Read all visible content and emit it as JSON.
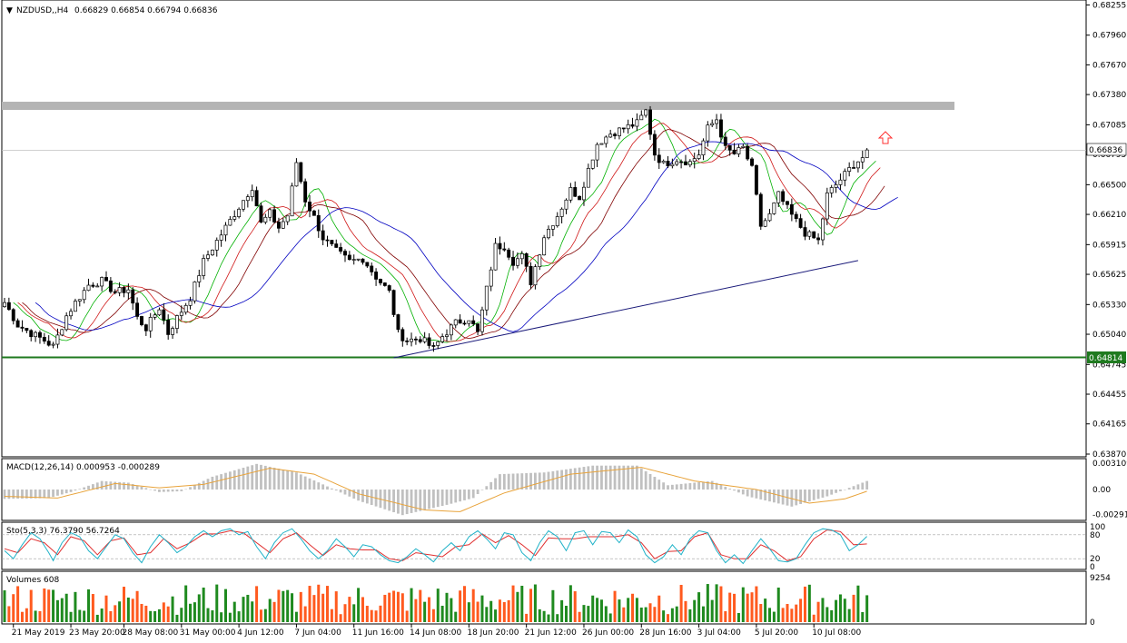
{
  "chart_data": {
    "type": "candlestick",
    "main": {
      "symbol": "NZDUSD,,H4",
      "ohlc_text": "0.66829 0.66854 0.66794 0.66836",
      "ylim": [
        0.6387,
        0.6825
      ],
      "price_ticks": [
        "0.68255",
        "0.67960",
        "0.67670",
        "0.67380",
        "0.67085",
        "0.66795",
        "0.66500",
        "0.66210",
        "0.65915",
        "0.65625",
        "0.65330",
        "0.65040",
        "0.64745",
        "0.64455",
        "0.64165",
        "0.63870"
      ],
      "current_price": "0.66836",
      "support_level": "0.64814",
      "resistance_zone": [
        0.6723,
        0.6731
      ],
      "trendline": [
        [
          0.6481,
          88
        ],
        [
          0.6576,
          193
        ]
      ],
      "close_path": [
        [
          0,
          0.6535
        ],
        [
          3,
          0.6513
        ],
        [
          6,
          0.6505
        ],
        [
          9,
          0.6498
        ],
        [
          11,
          0.6492
        ],
        [
          14,
          0.6522
        ],
        [
          16,
          0.6535
        ],
        [
          19,
          0.6552
        ],
        [
          22,
          0.6556
        ],
        [
          25,
          0.6545
        ],
        [
          28,
          0.6548
        ],
        [
          30,
          0.652
        ],
        [
          32,
          0.651
        ],
        [
          35,
          0.653
        ],
        [
          37,
          0.6505
        ],
        [
          39,
          0.652
        ],
        [
          42,
          0.654
        ],
        [
          45,
          0.6575
        ],
        [
          48,
          0.6595
        ],
        [
          51,
          0.6615
        ],
        [
          54,
          0.6635
        ],
        [
          56,
          0.6648
        ],
        [
          58,
          0.6612
        ],
        [
          60,
          0.6622
        ],
        [
          62,
          0.6608
        ],
        [
          64,
          0.662
        ],
        [
          66,
          0.6672
        ],
        [
          68,
          0.6635
        ],
        [
          70,
          0.6618
        ],
        [
          72,
          0.6598
        ],
        [
          75,
          0.6585
        ],
        [
          78,
          0.6575
        ],
        [
          81,
          0.6578
        ],
        [
          84,
          0.656
        ],
        [
          87,
          0.6545
        ],
        [
          89,
          0.6505
        ],
        [
          91,
          0.6498
        ],
        [
          94,
          0.65
        ],
        [
          97,
          0.649
        ],
        [
          99,
          0.6502
        ],
        [
          102,
          0.6515
        ],
        [
          105,
          0.652
        ],
        [
          107,
          0.6505
        ],
        [
          109,
          0.6548
        ],
        [
          111,
          0.659
        ],
        [
          113,
          0.659
        ],
        [
          115,
          0.6575
        ],
        [
          117,
          0.658
        ],
        [
          119,
          0.6555
        ],
        [
          122,
          0.66
        ],
        [
          125,
          0.662
        ],
        [
          128,
          0.6645
        ],
        [
          130,
          0.6638
        ],
        [
          132,
          0.6665
        ],
        [
          134,
          0.669
        ],
        [
          137,
          0.67
        ],
        [
          140,
          0.6705
        ],
        [
          143,
          0.671
        ],
        [
          145,
          0.6722
        ],
        [
          147,
          0.668
        ],
        [
          149,
          0.667
        ],
        [
          152,
          0.6675
        ],
        [
          155,
          0.6672
        ],
        [
          157,
          0.668
        ],
        [
          159,
          0.6705
        ],
        [
          161,
          0.6714
        ],
        [
          163,
          0.6685
        ],
        [
          165,
          0.668
        ],
        [
          167,
          0.6686
        ],
        [
          169,
          0.6665
        ],
        [
          171,
          0.661
        ],
        [
          173,
          0.662
        ],
        [
          175,
          0.664
        ],
        [
          178,
          0.662
        ],
        [
          181,
          0.6603
        ],
        [
          184,
          0.6595
        ],
        [
          186,
          0.664
        ],
        [
          189,
          0.6655
        ],
        [
          192,
          0.667
        ],
        [
          195,
          0.668
        ]
      ]
    },
    "x_labels": [
      {
        "label": "21 May 2019",
        "bar": 2
      },
      {
        "label": "23 May 20:00",
        "bar": 15
      },
      {
        "label": "28 May 08:00",
        "bar": 27
      },
      {
        "label": "31 May 00:00",
        "bar": 40
      },
      {
        "label": "4 Jun 12:00",
        "bar": 53
      },
      {
        "label": "7 Jun 04:00",
        "bar": 66
      },
      {
        "label": "11 Jun 16:00",
        "bar": 79
      },
      {
        "label": "14 Jun 08:00",
        "bar": 92
      },
      {
        "label": "18 Jun 20:00",
        "bar": 105
      },
      {
        "label": "21 Jun 12:00",
        "bar": 118
      },
      {
        "label": "26 Jun 00:00",
        "bar": 131
      },
      {
        "label": "28 Jun 16:00",
        "bar": 144
      },
      {
        "label": "3 Jul 04:00",
        "bar": 157
      },
      {
        "label": "5 Jul 20:00",
        "bar": 170
      },
      {
        "label": "10 Jul 08:00",
        "bar": 183
      }
    ],
    "macd": {
      "label": "MACD(12,26,14) 0.000953 -0.000289",
      "ticks": [
        "0.003109",
        "0.00",
        "-0.002912"
      ],
      "ylim": [
        -0.0033,
        0.0033
      ],
      "hist_path": [
        [
          0,
          -0.0011
        ],
        [
          10,
          -0.001
        ],
        [
          15,
          -0.0003
        ],
        [
          22,
          0.001
        ],
        [
          28,
          0.0008
        ],
        [
          35,
          -0.0003
        ],
        [
          40,
          -0.0002
        ],
        [
          47,
          0.0015
        ],
        [
          57,
          0.003
        ],
        [
          66,
          0.002
        ],
        [
          72,
          0.0006
        ],
        [
          80,
          -0.0013
        ],
        [
          90,
          -0.003
        ],
        [
          100,
          -0.0018
        ],
        [
          106,
          -0.001
        ],
        [
          112,
          0.0018
        ],
        [
          122,
          0.002
        ],
        [
          133,
          0.0028
        ],
        [
          143,
          0.0028
        ],
        [
          150,
          0.0005
        ],
        [
          160,
          0.001
        ],
        [
          168,
          -0.0008
        ],
        [
          178,
          -0.002
        ],
        [
          186,
          -0.0008
        ],
        [
          192,
          0.0004
        ],
        [
          195,
          0.001
        ]
      ],
      "signal_path": [
        [
          0,
          -0.0008
        ],
        [
          12,
          -0.001
        ],
        [
          25,
          0.0007
        ],
        [
          35,
          0.0002
        ],
        [
          45,
          0.0006
        ],
        [
          60,
          0.0025
        ],
        [
          70,
          0.0018
        ],
        [
          80,
          -0.0005
        ],
        [
          95,
          -0.0024
        ],
        [
          103,
          -0.0026
        ],
        [
          113,
          -0.0004
        ],
        [
          128,
          0.0018
        ],
        [
          144,
          0.0026
        ],
        [
          156,
          0.001
        ],
        [
          170,
          0.0
        ],
        [
          182,
          -0.0016
        ],
        [
          190,
          -0.0011
        ],
        [
          195,
          -0.0002
        ]
      ],
      "colors": {
        "histogram": "#c0c0c0",
        "signal": "#e8a33a"
      }
    },
    "stochastic": {
      "label": "Sto(5,3,3) 76.3790 56.7264",
      "ticks": [
        "100",
        "80",
        "20",
        "0"
      ],
      "levels": [
        80,
        20
      ],
      "k_path": [
        [
          0,
          40
        ],
        [
          2,
          20
        ],
        [
          4,
          55
        ],
        [
          6,
          85
        ],
        [
          8,
          70
        ],
        [
          10,
          35
        ],
        [
          11,
          15
        ],
        [
          13,
          60
        ],
        [
          15,
          85
        ],
        [
          17,
          75
        ],
        [
          19,
          40
        ],
        [
          21,
          20
        ],
        [
          23,
          50
        ],
        [
          25,
          80
        ],
        [
          27,
          70
        ],
        [
          29,
          35
        ],
        [
          31,
          10
        ],
        [
          33,
          50
        ],
        [
          35,
          80
        ],
        [
          37,
          60
        ],
        [
          39,
          35
        ],
        [
          41,
          50
        ],
        [
          43,
          75
        ],
        [
          45,
          90
        ],
        [
          47,
          75
        ],
        [
          49,
          90
        ],
        [
          51,
          95
        ],
        [
          53,
          80
        ],
        [
          55,
          88
        ],
        [
          57,
          50
        ],
        [
          59,
          20
        ],
        [
          61,
          60
        ],
        [
          63,
          85
        ],
        [
          65,
          95
        ],
        [
          67,
          70
        ],
        [
          69,
          40
        ],
        [
          71,
          20
        ],
        [
          73,
          40
        ],
        [
          75,
          70
        ],
        [
          77,
          50
        ],
        [
          79,
          25
        ],
        [
          81,
          55
        ],
        [
          83,
          50
        ],
        [
          85,
          30
        ],
        [
          87,
          15
        ],
        [
          89,
          10
        ],
        [
          91,
          25
        ],
        [
          93,
          45
        ],
        [
          95,
          30
        ],
        [
          97,
          12
        ],
        [
          99,
          40
        ],
        [
          101,
          60
        ],
        [
          103,
          40
        ],
        [
          105,
          75
        ],
        [
          107,
          90
        ],
        [
          109,
          70
        ],
        [
          111,
          45
        ],
        [
          113,
          85
        ],
        [
          115,
          80
        ],
        [
          117,
          35
        ],
        [
          119,
          15
        ],
        [
          121,
          60
        ],
        [
          123,
          90
        ],
        [
          125,
          75
        ],
        [
          127,
          40
        ],
        [
          129,
          85
        ],
        [
          131,
          90
        ],
        [
          133,
          55
        ],
        [
          135,
          88
        ],
        [
          137,
          85
        ],
        [
          139,
          60
        ],
        [
          141,
          92
        ],
        [
          143,
          75
        ],
        [
          145,
          30
        ],
        [
          147,
          10
        ],
        [
          149,
          25
        ],
        [
          151,
          55
        ],
        [
          153,
          30
        ],
        [
          155,
          70
        ],
        [
          157,
          90
        ],
        [
          159,
          85
        ],
        [
          161,
          40
        ],
        [
          163,
          10
        ],
        [
          165,
          30
        ],
        [
          167,
          8
        ],
        [
          169,
          40
        ],
        [
          171,
          70
        ],
        [
          173,
          45
        ],
        [
          175,
          15
        ],
        [
          177,
          12
        ],
        [
          179,
          20
        ],
        [
          181,
          55
        ],
        [
          183,
          85
        ],
        [
          185,
          95
        ],
        [
          187,
          92
        ],
        [
          189,
          80
        ],
        [
          191,
          40
        ],
        [
          193,
          55
        ],
        [
          195,
          76
        ]
      ],
      "d_path": [
        [
          0,
          45
        ],
        [
          3,
          35
        ],
        [
          6,
          70
        ],
        [
          9,
          60
        ],
        [
          12,
          30
        ],
        [
          15,
          75
        ],
        [
          18,
          65
        ],
        [
          21,
          30
        ],
        [
          24,
          65
        ],
        [
          27,
          72
        ],
        [
          30,
          30
        ],
        [
          33,
          35
        ],
        [
          36,
          70
        ],
        [
          39,
          45
        ],
        [
          42,
          60
        ],
        [
          45,
          82
        ],
        [
          48,
          82
        ],
        [
          51,
          90
        ],
        [
          54,
          85
        ],
        [
          57,
          60
        ],
        [
          60,
          35
        ],
        [
          63,
          70
        ],
        [
          66,
          85
        ],
        [
          69,
          55
        ],
        [
          72,
          28
        ],
        [
          75,
          55
        ],
        [
          78,
          45
        ],
        [
          81,
          42
        ],
        [
          84,
          42
        ],
        [
          87,
          20
        ],
        [
          90,
          15
        ],
        [
          93,
          35
        ],
        [
          96,
          30
        ],
        [
          99,
          25
        ],
        [
          102,
          50
        ],
        [
          105,
          55
        ],
        [
          108,
          82
        ],
        [
          111,
          60
        ],
        [
          114,
          78
        ],
        [
          117,
          55
        ],
        [
          120,
          28
        ],
        [
          123,
          72
        ],
        [
          126,
          70
        ],
        [
          129,
          70
        ],
        [
          132,
          75
        ],
        [
          135,
          75
        ],
        [
          138,
          75
        ],
        [
          141,
          80
        ],
        [
          144,
          60
        ],
        [
          147,
          20
        ],
        [
          150,
          38
        ],
        [
          153,
          40
        ],
        [
          156,
          75
        ],
        [
          159,
          85
        ],
        [
          162,
          30
        ],
        [
          165,
          20
        ],
        [
          168,
          20
        ],
        [
          171,
          55
        ],
        [
          174,
          40
        ],
        [
          177,
          15
        ],
        [
          180,
          25
        ],
        [
          183,
          70
        ],
        [
          186,
          92
        ],
        [
          189,
          88
        ],
        [
          192,
          55
        ],
        [
          195,
          57
        ]
      ],
      "colors": {
        "k": "#20b2c8",
        "d": "#e03030"
      }
    },
    "volumes": {
      "label": "Volumes 608",
      "ticks": [
        "9254",
        "0"
      ],
      "max": 9254,
      "colors": {
        "up": "#1f8a1f",
        "down": "#ff5a1f"
      }
    },
    "colors": {
      "up": "#ffffff",
      "down": "#000000",
      "resistance": "#b4b4b4",
      "support": "#1f7a1f",
      "trendline": "#1a1a7a",
      "ma_fast": "#00b000",
      "ma_mid1": "#d01818",
      "ma_mid2": "#800000",
      "ma_slow": "#0000c0",
      "arrow": "#ff3030"
    }
  }
}
